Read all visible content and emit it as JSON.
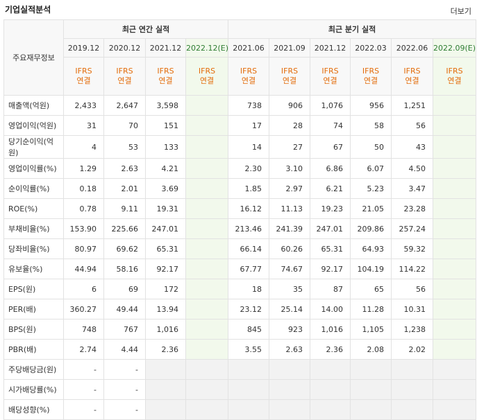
{
  "header": {
    "title": "기업실적분석",
    "more_label": "더보기"
  },
  "columns": {
    "row_header": "주요재무정보",
    "annual_group": "최근 연간 실적",
    "quarter_group": "최근 분기 실적",
    "annual": [
      "2019.12",
      "2020.12",
      "2021.12",
      "2022.12(E)"
    ],
    "quarter": [
      "2021.06",
      "2021.09",
      "2021.12",
      "2022.03",
      "2022.06",
      "2022.09(E)"
    ],
    "ifrs": "IFRS",
    "basis": "연결"
  },
  "rows": [
    {
      "label": "매출액(억원)",
      "annual": [
        "2,433",
        "2,647",
        "3,598",
        ""
      ],
      "quarter": [
        "738",
        "906",
        "1,076",
        "956",
        "1,251",
        ""
      ]
    },
    {
      "label": "영업이익(억원)",
      "annual": [
        "31",
        "70",
        "151",
        ""
      ],
      "quarter": [
        "17",
        "28",
        "74",
        "58",
        "56",
        ""
      ]
    },
    {
      "label": "당기순이익(억원)",
      "annual": [
        "4",
        "53",
        "133",
        ""
      ],
      "quarter": [
        "14",
        "27",
        "67",
        "50",
        "43",
        ""
      ]
    },
    {
      "label": "영업이익률(%)",
      "annual": [
        "1.29",
        "2.63",
        "4.21",
        ""
      ],
      "quarter": [
        "2.30",
        "3.10",
        "6.86",
        "6.07",
        "4.50",
        ""
      ]
    },
    {
      "label": "순이익률(%)",
      "annual": [
        "0.18",
        "2.01",
        "3.69",
        ""
      ],
      "quarter": [
        "1.85",
        "2.97",
        "6.21",
        "5.23",
        "3.47",
        ""
      ]
    },
    {
      "label": "ROE(%)",
      "annual": [
        "0.78",
        "9.11",
        "19.31",
        ""
      ],
      "quarter": [
        "16.12",
        "11.13",
        "19.23",
        "21.05",
        "23.28",
        ""
      ]
    },
    {
      "label": "부채비율(%)",
      "annual": [
        "153.90",
        "225.66",
        "247.01",
        ""
      ],
      "quarter": [
        "213.46",
        "241.39",
        "247.01",
        "209.86",
        "257.24",
        ""
      ]
    },
    {
      "label": "당좌비율(%)",
      "annual": [
        "80.97",
        "69.62",
        "65.31",
        ""
      ],
      "quarter": [
        "66.14",
        "60.26",
        "65.31",
        "64.93",
        "59.32",
        ""
      ]
    },
    {
      "label": "유보율(%)",
      "annual": [
        "44.94",
        "58.16",
        "92.17",
        ""
      ],
      "quarter": [
        "67.77",
        "74.67",
        "92.17",
        "104.19",
        "114.22",
        ""
      ]
    },
    {
      "label": "EPS(원)",
      "annual": [
        "6",
        "69",
        "172",
        ""
      ],
      "quarter": [
        "18",
        "35",
        "87",
        "65",
        "56",
        ""
      ]
    },
    {
      "label": "PER(배)",
      "annual": [
        "360.27",
        "49.44",
        "13.94",
        ""
      ],
      "quarter": [
        "23.12",
        "25.14",
        "14.00",
        "11.28",
        "10.31",
        ""
      ]
    },
    {
      "label": "BPS(원)",
      "annual": [
        "748",
        "767",
        "1,016",
        ""
      ],
      "quarter": [
        "845",
        "923",
        "1,016",
        "1,105",
        "1,238",
        ""
      ]
    },
    {
      "label": "PBR(배)",
      "annual": [
        "2.74",
        "4.44",
        "2.36",
        ""
      ],
      "quarter": [
        "3.55",
        "2.63",
        "2.36",
        "2.08",
        "2.02",
        ""
      ]
    },
    {
      "label": "주당배당금(원)",
      "annual": [
        "-",
        "-",
        "",
        ""
      ],
      "quarter": [
        "",
        "",
        "",
        "",
        "",
        ""
      ]
    },
    {
      "label": "시가배당률(%)",
      "annual": [
        "-",
        "-",
        "",
        ""
      ],
      "quarter": [
        "",
        "",
        "",
        "",
        "",
        ""
      ]
    },
    {
      "label": "배당성향(%)",
      "annual": [
        "-",
        "-",
        "",
        ""
      ],
      "quarter": [
        "",
        "",
        "",
        "",
        "",
        ""
      ]
    }
  ]
}
